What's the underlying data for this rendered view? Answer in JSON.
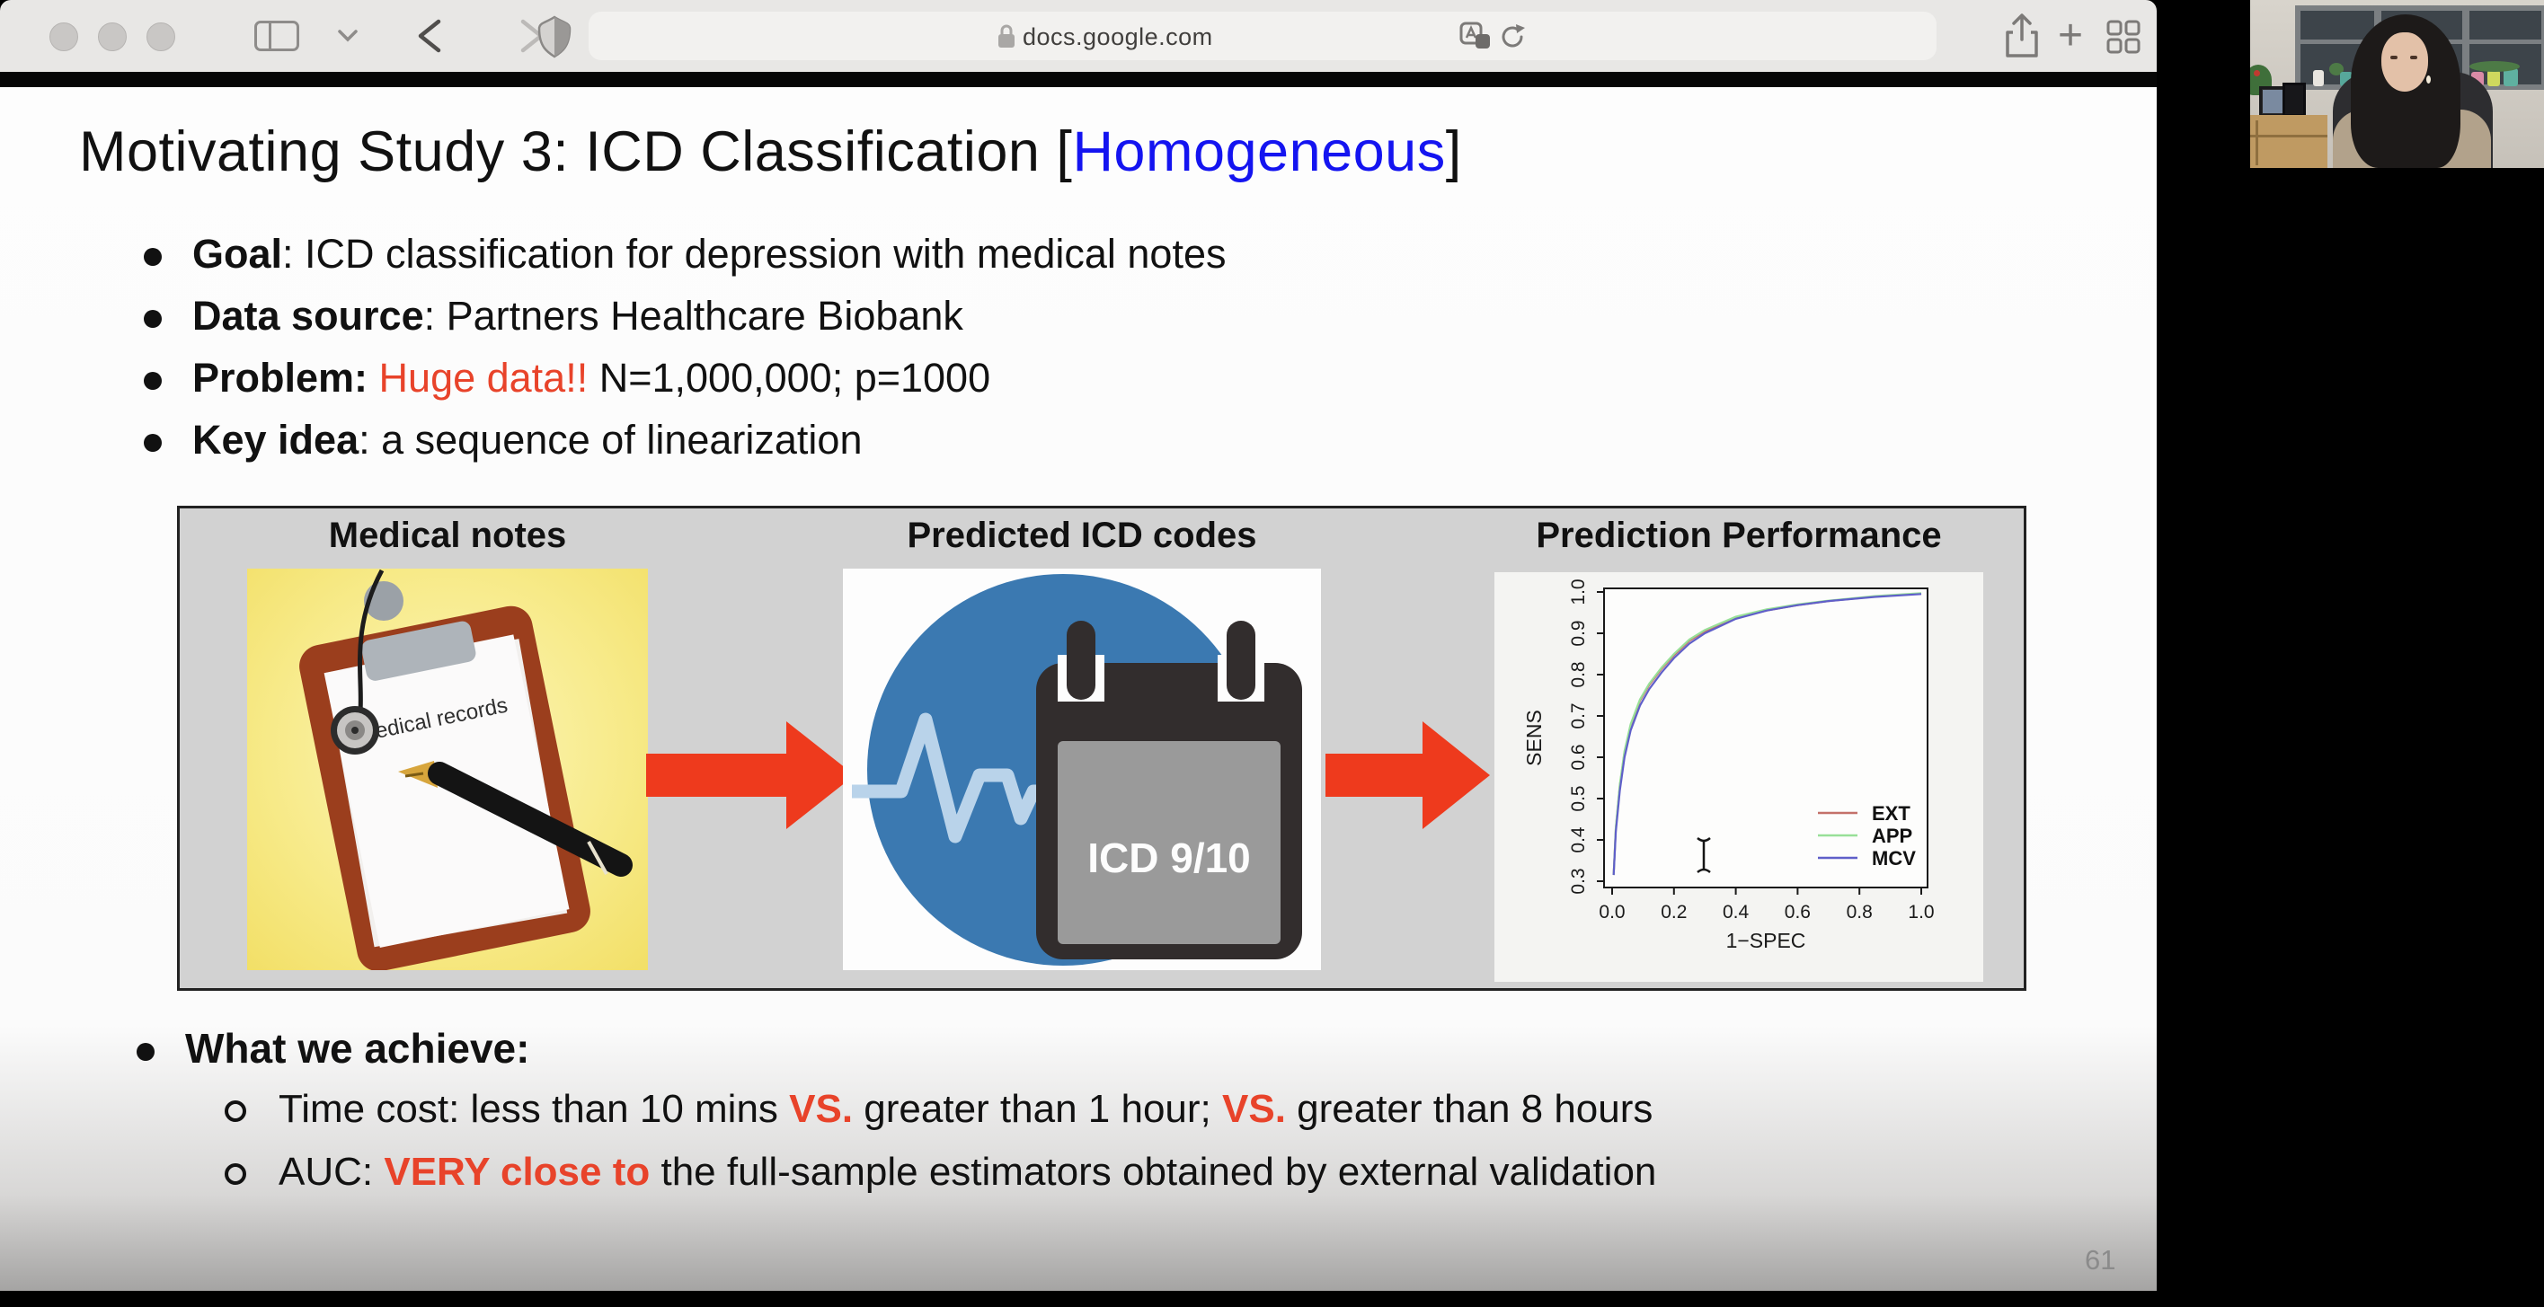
{
  "browser": {
    "url": "docs.google.com",
    "new_tab_glyph": "+"
  },
  "slide": {
    "title": {
      "prefix": "Motivating Study 3: ICD Classification [",
      "highlight": "Homogeneous",
      "suffix": "]"
    },
    "bullets": [
      {
        "b": "Goal",
        "r": "",
        "t": ": ICD classification for depression with medical notes"
      },
      {
        "b": "Data source",
        "r": "",
        "t": ": Partners Healthcare Biobank"
      },
      {
        "b": "Problem: ",
        "r": "Huge data!!",
        "t": " N=1,000,000; p=1000"
      },
      {
        "b": "Key idea",
        "r": "",
        "t": ": a sequence of linearization"
      }
    ],
    "diagram": {
      "headers": [
        "Medical notes",
        "Predicted ICD codes",
        "Prediction Performance"
      ],
      "clipboard_label": "Medical records",
      "calendar_label": "ICD 9/10"
    },
    "achieve": {
      "heading": "What we achieve:",
      "items": [
        {
          "p0": "Time cost: less than 10 mins ",
          "r0": "VS.",
          "p1": " greater than 1 hour; ",
          "r1": "VS.",
          "p2": " greater than 8 hours"
        },
        {
          "p0": "AUC: ",
          "r0": "VERY close to",
          "p1": " the full-sample estimators obtained by external validation",
          "r1": "",
          "p2": ""
        }
      ]
    },
    "page_number": "61"
  },
  "chart_data": {
    "type": "line",
    "title": "Prediction Performance",
    "xlabel": "1−SPEC",
    "ylabel": "SENS",
    "xlim": [
      0.0,
      1.0
    ],
    "ylim": [
      0.3,
      1.0
    ],
    "x_ticks": [
      0.0,
      0.2,
      0.4,
      0.6,
      0.8,
      1.0
    ],
    "y_ticks": [
      0.3,
      0.4,
      0.5,
      0.6,
      0.7,
      0.8,
      0.9,
      1.0
    ],
    "grid": false,
    "legend_position": "lower right",
    "legend": [
      "EXT",
      "APP",
      "MCV"
    ],
    "colors": {
      "EXT": "#c4716a",
      "APP": "#98e098",
      "MCV": "#5f5fc9"
    },
    "x": [
      0.005,
      0.012,
      0.025,
      0.04,
      0.06,
      0.09,
      0.12,
      0.16,
      0.2,
      0.25,
      0.3,
      0.4,
      0.5,
      0.6,
      0.7,
      0.85,
      1.0
    ],
    "series": [
      {
        "name": "EXT",
        "y": [
          0.315,
          0.427,
          0.532,
          0.612,
          0.677,
          0.737,
          0.775,
          0.814,
          0.847,
          0.882,
          0.905,
          0.937,
          0.955,
          0.968,
          0.978,
          0.989,
          0.996
        ]
      },
      {
        "name": "APP",
        "y": [
          0.315,
          0.43,
          0.535,
          0.615,
          0.68,
          0.74,
          0.778,
          0.817,
          0.85,
          0.885,
          0.908,
          0.94,
          0.958,
          0.97,
          0.979,
          0.99,
          0.997
        ]
      },
      {
        "name": "MCV",
        "y": [
          0.315,
          0.42,
          0.52,
          0.6,
          0.665,
          0.725,
          0.765,
          0.805,
          0.84,
          0.875,
          0.9,
          0.935,
          0.955,
          0.968,
          0.978,
          0.988,
          0.995
        ]
      }
    ]
  }
}
